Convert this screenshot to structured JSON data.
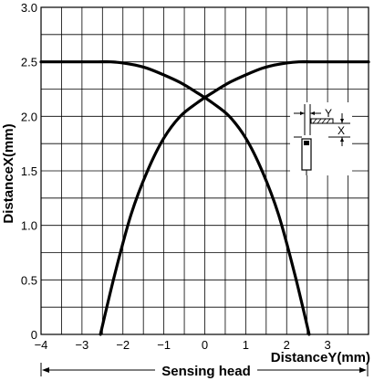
{
  "chart_data": {
    "type": "line",
    "xlabel": "DistanceY(mm)",
    "ylabel": "DistanceX(mm)",
    "footer_label": "Sensing head",
    "xlim": [
      -4,
      4
    ],
    "ylim": [
      0,
      3.0
    ],
    "x_ticks": [
      -4,
      -3,
      -2,
      -1,
      0,
      1,
      2,
      3
    ],
    "x_tick_labels": [
      "−4",
      "−3",
      "−2",
      "−1",
      "0",
      "1",
      "2",
      "3"
    ],
    "y_ticks": [
      0,
      0.5,
      1.0,
      1.5,
      2.0,
      2.5,
      3.0
    ],
    "y_tick_labels": [
      "0",
      "0.5",
      "1.0",
      "1.5",
      "2.0",
      "2.5",
      "3.0"
    ],
    "grid": true,
    "series": [
      {
        "x": [
          -2.55,
          -2.2,
          -1.8,
          -1.4,
          -1.0,
          -0.6,
          -0.2,
          0.2,
          0.6,
          1.0,
          1.4,
          1.7,
          2.0,
          2.3,
          2.6,
          3.0,
          4.0
        ],
        "y": [
          0,
          0.55,
          1.1,
          1.5,
          1.8,
          2.0,
          2.12,
          2.22,
          2.31,
          2.38,
          2.44,
          2.47,
          2.49,
          2.5,
          2.5,
          2.5,
          2.5
        ]
      },
      {
        "x": [
          -4.0,
          -3.0,
          -2.6,
          -2.3,
          -2.0,
          -1.7,
          -1.4,
          -1.0,
          -0.6,
          -0.2,
          0.2,
          0.6,
          1.0,
          1.4,
          1.8,
          2.2,
          2.55
        ],
        "y": [
          2.5,
          2.5,
          2.5,
          2.5,
          2.49,
          2.47,
          2.44,
          2.38,
          2.31,
          2.22,
          2.12,
          2.0,
          1.8,
          1.5,
          1.1,
          0.55,
          0
        ]
      }
    ],
    "inset_labels": {
      "y_label": "Y",
      "x_label": "X"
    }
  }
}
